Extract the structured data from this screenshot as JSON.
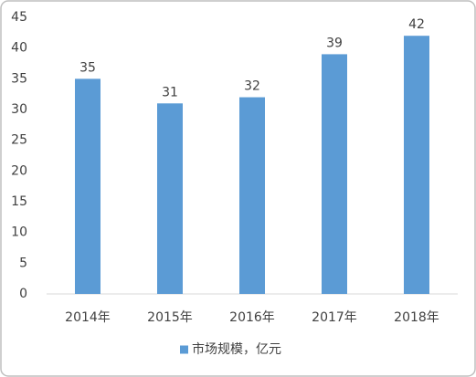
{
  "chart_data": {
    "type": "bar",
    "categories": [
      "2014年",
      "2015年",
      "2016年",
      "2017年",
      "2018年"
    ],
    "series": [
      {
        "name": "市场规模，亿元",
        "color": "#5b9bd5",
        "values": [
          35,
          31,
          32,
          39,
          42
        ]
      }
    ],
    "ylim": [
      0,
      45
    ],
    "yticks": [
      0,
      5,
      10,
      15,
      20,
      25,
      30,
      35,
      40,
      45
    ],
    "grid": false,
    "legend": "bottom"
  }
}
